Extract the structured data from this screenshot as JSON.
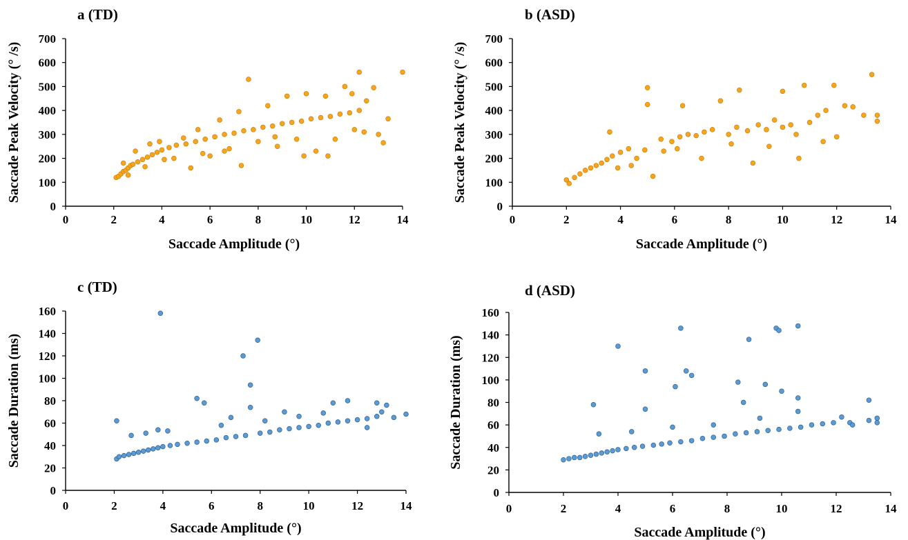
{
  "colors": {
    "orange_fill": "#f7a521",
    "orange_stroke": "#c98000",
    "blue_fill": "#5a9bd5",
    "blue_stroke": "#2f5e8e"
  },
  "chart_data": [
    {
      "type": "scatter",
      "panel": "a",
      "title": "a  (TD)",
      "xlabel": "Saccade Amplitude (°)",
      "ylabel": "Saccade Peak Velocity (° /s)",
      "xlim": [
        0,
        14
      ],
      "ylim": [
        0,
        700
      ],
      "xticks": [
        "0",
        "2",
        "4",
        "6",
        "8",
        "10",
        "12",
        "14"
      ],
      "yticks": [
        "0",
        "100",
        "200",
        "300",
        "400",
        "500",
        "600",
        "700"
      ],
      "grid": false,
      "color": "orange",
      "points": [
        [
          2.1,
          120
        ],
        [
          2.2,
          125
        ],
        [
          2.3,
          135
        ],
        [
          2.4,
          145
        ],
        [
          2.5,
          150
        ],
        [
          2.6,
          160
        ],
        [
          2.7,
          170
        ],
        [
          2.8,
          175
        ],
        [
          3.0,
          185
        ],
        [
          3.2,
          195
        ],
        [
          3.4,
          205
        ],
        [
          3.6,
          215
        ],
        [
          3.8,
          225
        ],
        [
          4.0,
          235
        ],
        [
          4.3,
          245
        ],
        [
          4.6,
          255
        ],
        [
          5.0,
          260
        ],
        [
          5.4,
          270
        ],
        [
          5.8,
          280
        ],
        [
          6.2,
          290
        ],
        [
          6.6,
          300
        ],
        [
          7.0,
          305
        ],
        [
          7.4,
          315
        ],
        [
          7.8,
          320
        ],
        [
          8.2,
          330
        ],
        [
          8.6,
          335
        ],
        [
          9.0,
          345
        ],
        [
          9.4,
          350
        ],
        [
          9.8,
          355
        ],
        [
          10.2,
          365
        ],
        [
          10.6,
          370
        ],
        [
          11.0,
          375
        ],
        [
          11.4,
          385
        ],
        [
          11.8,
          390
        ],
        [
          12.2,
          400
        ],
        [
          2.4,
          180
        ],
        [
          2.9,
          230
        ],
        [
          3.5,
          260
        ],
        [
          3.9,
          270
        ],
        [
          4.5,
          200
        ],
        [
          5.2,
          160
        ],
        [
          5.5,
          320
        ],
        [
          6.0,
          210
        ],
        [
          6.4,
          360
        ],
        [
          6.8,
          240
        ],
        [
          7.2,
          395
        ],
        [
          7.6,
          530
        ],
        [
          8.0,
          270
        ],
        [
          8.4,
          420
        ],
        [
          8.8,
          250
        ],
        [
          9.2,
          460
        ],
        [
          9.6,
          280
        ],
        [
          10.0,
          470
        ],
        [
          10.4,
          230
        ],
        [
          10.8,
          460
        ],
        [
          11.2,
          280
        ],
        [
          11.6,
          500
        ],
        [
          12.0,
          320
        ],
        [
          12.2,
          560
        ],
        [
          12.5,
          440
        ],
        [
          12.8,
          495
        ],
        [
          13.0,
          300
        ],
        [
          13.2,
          265
        ],
        [
          13.4,
          365
        ],
        [
          14.0,
          560
        ],
        [
          12.4,
          310
        ],
        [
          11.9,
          470
        ],
        [
          10.9,
          210
        ],
        [
          9.9,
          210
        ],
        [
          8.7,
          290
        ],
        [
          7.3,
          170
        ],
        [
          6.6,
          230
        ],
        [
          5.7,
          220
        ],
        [
          4.9,
          285
        ],
        [
          4.1,
          195
        ],
        [
          3.3,
          165
        ],
        [
          2.6,
          130
        ]
      ]
    },
    {
      "type": "scatter",
      "panel": "b",
      "title": "b  (ASD)",
      "xlabel": "Saccade Amplitude (°)",
      "ylabel": "Saccade Peak Velocity (° /s)",
      "xlim": [
        0,
        14
      ],
      "ylim": [
        0,
        700
      ],
      "xticks": [
        "0",
        "2",
        "4",
        "6",
        "8",
        "10",
        "12",
        "14"
      ],
      "yticks": [
        "0",
        "100",
        "200",
        "300",
        "400",
        "500",
        "600",
        "700"
      ],
      "grid": false,
      "color": "orange",
      "points": [
        [
          2.0,
          110
        ],
        [
          2.1,
          95
        ],
        [
          2.3,
          120
        ],
        [
          2.5,
          135
        ],
        [
          2.7,
          150
        ],
        [
          2.9,
          160
        ],
        [
          3.1,
          170
        ],
        [
          3.3,
          180
        ],
        [
          3.5,
          195
        ],
        [
          3.7,
          210
        ],
        [
          3.6,
          310
        ],
        [
          4.0,
          225
        ],
        [
          4.3,
          240
        ],
        [
          4.6,
          200
        ],
        [
          4.9,
          235
        ],
        [
          5.0,
          495
        ],
        [
          5.0,
          425
        ],
        [
          5.2,
          125
        ],
        [
          5.5,
          280
        ],
        [
          5.9,
          270
        ],
        [
          6.2,
          290
        ],
        [
          6.3,
          420
        ],
        [
          6.5,
          300
        ],
        [
          6.8,
          295
        ],
        [
          7.1,
          310
        ],
        [
          7.4,
          320
        ],
        [
          7.7,
          440
        ],
        [
          8.0,
          300
        ],
        [
          8.3,
          330
        ],
        [
          8.4,
          485
        ],
        [
          8.7,
          315
        ],
        [
          8.9,
          180
        ],
        [
          9.1,
          340
        ],
        [
          9.4,
          320
        ],
        [
          9.7,
          360
        ],
        [
          10.0,
          330
        ],
        [
          10.0,
          480
        ],
        [
          10.3,
          340
        ],
        [
          10.6,
          200
        ],
        [
          10.8,
          505
        ],
        [
          11.0,
          350
        ],
        [
          11.3,
          380
        ],
        [
          11.6,
          400
        ],
        [
          11.9,
          505
        ],
        [
          12.0,
          290
        ],
        [
          12.3,
          420
        ],
        [
          12.6,
          415
        ],
        [
          13.0,
          380
        ],
        [
          13.3,
          550
        ],
        [
          13.5,
          380
        ],
        [
          13.5,
          355
        ],
        [
          9.5,
          250
        ],
        [
          8.1,
          260
        ],
        [
          7.0,
          200
        ],
        [
          6.1,
          240
        ],
        [
          5.6,
          230
        ],
        [
          4.4,
          170
        ],
        [
          3.9,
          160
        ],
        [
          10.5,
          300
        ],
        [
          11.5,
          270
        ]
      ]
    },
    {
      "type": "scatter",
      "panel": "c",
      "title": "c  (TD)",
      "xlabel": "Saccade Amplitude (°)",
      "ylabel": "Saccade Duration (ms)",
      "xlim": [
        0,
        14
      ],
      "ylim": [
        0,
        160
      ],
      "xticks": [
        "0",
        "2",
        "4",
        "6",
        "8",
        "10",
        "12",
        "14"
      ],
      "yticks": [
        "0",
        "20",
        "40",
        "60",
        "80",
        "100",
        "120",
        "140",
        "160"
      ],
      "grid": false,
      "color": "blue",
      "points": [
        [
          2.1,
          28
        ],
        [
          2.1,
          62
        ],
        [
          2.2,
          30
        ],
        [
          2.4,
          31
        ],
        [
          2.6,
          32
        ],
        [
          2.8,
          33
        ],
        [
          3.0,
          34
        ],
        [
          3.2,
          35
        ],
        [
          3.4,
          36
        ],
        [
          3.6,
          37
        ],
        [
          3.8,
          38
        ],
        [
          4.0,
          39
        ],
        [
          3.9,
          158
        ],
        [
          4.3,
          40
        ],
        [
          4.6,
          41
        ],
        [
          5.0,
          42
        ],
        [
          5.4,
          43
        ],
        [
          5.4,
          82
        ],
        [
          5.7,
          78
        ],
        [
          5.8,
          44
        ],
        [
          6.2,
          45
        ],
        [
          6.6,
          47
        ],
        [
          7.0,
          48
        ],
        [
          7.3,
          120
        ],
        [
          7.4,
          49
        ],
        [
          7.6,
          94
        ],
        [
          7.6,
          74
        ],
        [
          7.9,
          134
        ],
        [
          8.0,
          51
        ],
        [
          8.4,
          52
        ],
        [
          8.8,
          54
        ],
        [
          9.2,
          55
        ],
        [
          9.6,
          56
        ],
        [
          10.0,
          57
        ],
        [
          10.4,
          58
        ],
        [
          10.8,
          60
        ],
        [
          11.2,
          61
        ],
        [
          11.6,
          62
        ],
        [
          12.0,
          63
        ],
        [
          12.4,
          64
        ],
        [
          12.8,
          66
        ],
        [
          12.8,
          78
        ],
        [
          13.0,
          70
        ],
        [
          13.2,
          76
        ],
        [
          13.5,
          65
        ],
        [
          14.0,
          68
        ],
        [
          2.7,
          49
        ],
        [
          3.3,
          51
        ],
        [
          3.8,
          54
        ],
        [
          4.2,
          53
        ],
        [
          6.4,
          58
        ],
        [
          6.8,
          65
        ],
        [
          8.2,
          62
        ],
        [
          9.0,
          70
        ],
        [
          9.6,
          66
        ],
        [
          10.6,
          69
        ],
        [
          11.0,
          78
        ],
        [
          11.6,
          80
        ],
        [
          12.4,
          56
        ]
      ]
    },
    {
      "type": "scatter",
      "panel": "d",
      "title": "d  (ASD)",
      "xlabel": "Saccade Amplitude (°)",
      "ylabel": "Saccade Duration (ms)",
      "xlim": [
        0,
        14
      ],
      "ylim": [
        0,
        160
      ],
      "xticks": [
        "0",
        "2",
        "4",
        "6",
        "8",
        "10",
        "12",
        "14"
      ],
      "yticks": [
        "0",
        "20",
        "40",
        "60",
        "80",
        "100",
        "120",
        "140",
        "160"
      ],
      "grid": false,
      "color": "blue",
      "points": [
        [
          2.0,
          29
        ],
        [
          2.2,
          30
        ],
        [
          2.4,
          31
        ],
        [
          2.6,
          31
        ],
        [
          2.8,
          32
        ],
        [
          3.0,
          33
        ],
        [
          3.1,
          78
        ],
        [
          3.2,
          34
        ],
        [
          3.4,
          35
        ],
        [
          3.6,
          36
        ],
        [
          3.8,
          37
        ],
        [
          4.0,
          38
        ],
        [
          4.0,
          130
        ],
        [
          4.3,
          39
        ],
        [
          4.6,
          40
        ],
        [
          4.9,
          41
        ],
        [
          5.0,
          108
        ],
        [
          5.0,
          74
        ],
        [
          5.3,
          42
        ],
        [
          5.6,
          43
        ],
        [
          5.9,
          44
        ],
        [
          6.1,
          94
        ],
        [
          6.3,
          146
        ],
        [
          6.5,
          108
        ],
        [
          6.3,
          45
        ],
        [
          6.7,
          104
        ],
        [
          6.7,
          46
        ],
        [
          7.1,
          48
        ],
        [
          7.5,
          49
        ],
        [
          7.9,
          50
        ],
        [
          8.3,
          52
        ],
        [
          8.4,
          98
        ],
        [
          8.6,
          80
        ],
        [
          8.7,
          53
        ],
        [
          8.8,
          136
        ],
        [
          9.1,
          54
        ],
        [
          9.4,
          96
        ],
        [
          9.5,
          55
        ],
        [
          9.8,
          146
        ],
        [
          9.9,
          144
        ],
        [
          9.9,
          56
        ],
        [
          10.0,
          90
        ],
        [
          10.3,
          57
        ],
        [
          10.6,
          148
        ],
        [
          10.7,
          58
        ],
        [
          10.6,
          84
        ],
        [
          11.1,
          60
        ],
        [
          11.5,
          61
        ],
        [
          11.9,
          62
        ],
        [
          12.2,
          67
        ],
        [
          12.5,
          62
        ],
        [
          12.6,
          60
        ],
        [
          13.2,
          82
        ],
        [
          13.2,
          64
        ],
        [
          13.5,
          66
        ],
        [
          13.5,
          62
        ],
        [
          3.3,
          52
        ],
        [
          4.5,
          54
        ],
        [
          6.0,
          58
        ],
        [
          7.5,
          60
        ],
        [
          9.2,
          66
        ],
        [
          10.6,
          72
        ]
      ]
    }
  ]
}
